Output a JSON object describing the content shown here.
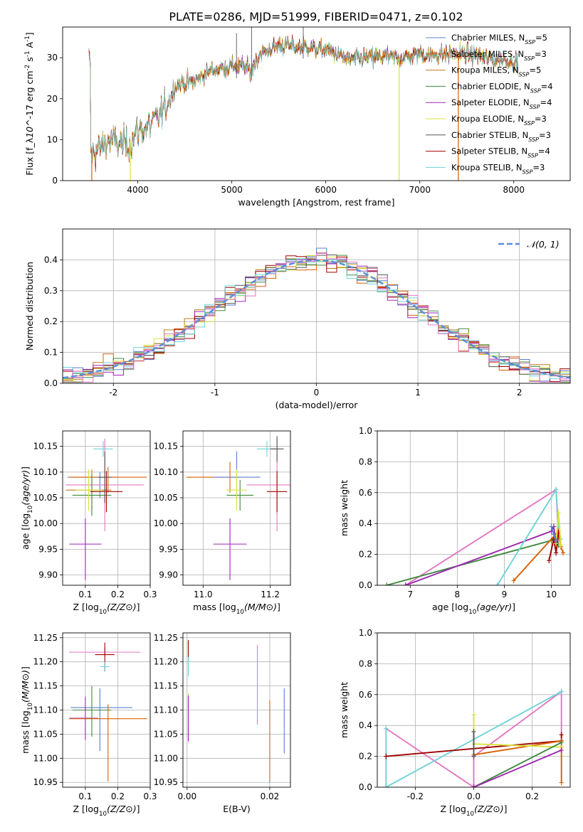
{
  "title": "PLATE=0286, MJD=51999, FIBERID=0471, z=0.102",
  "model_colors": [
    "#5b7fcf",
    "#d95f02",
    "#c07a1a",
    "#3f8a3f",
    "#9b27b0",
    "#d8e33a",
    "#555555",
    "#a00000",
    "#6fd3d8"
  ],
  "pink": "#e377c2",
  "chart_data": [
    {
      "type": "line",
      "name": "spectrum",
      "xlabel": "wavelength [Angstrom, rest frame]",
      "ylabel": "Flux [f_λ10^-17 erg cm^-2 s^-1 A^-1]",
      "xlim": [
        3200,
        8600
      ],
      "ylim": [
        0,
        37.5
      ],
      "xticks": [
        4000,
        5000,
        6000,
        7000,
        8000
      ],
      "yticks": [
        0,
        10,
        20,
        30
      ],
      "grid": false,
      "legend": "right",
      "legend_entries": [
        "Chabrier MILES, N_SSP=5",
        "Salpeter MILES, N_SSP=3",
        "Kroupa MILES, N_SSP=5",
        "Chabrier ELODIE, N_SSP=4",
        "Salpeter ELODIE, N_SSP=4",
        "Kroupa ELODIE, N_SSP=3",
        "Chabrier STELIB, N_SSP=3",
        "Salpeter STELIB, N_SSP=4",
        "Kroupa STELIB, N_SSP=3"
      ],
      "trend_points": [
        [
          3500,
          6.5
        ],
        [
          3600,
          8
        ],
        [
          3700,
          10
        ],
        [
          3800,
          9
        ],
        [
          3900,
          9
        ],
        [
          4000,
          12
        ],
        [
          4100,
          13
        ],
        [
          4200,
          15
        ],
        [
          4300,
          18
        ],
        [
          4400,
          23
        ],
        [
          4500,
          24
        ],
        [
          4600,
          24
        ],
        [
          4700,
          26
        ],
        [
          4800,
          27
        ],
        [
          4900,
          27.5
        ],
        [
          5000,
          28
        ],
        [
          5100,
          28
        ],
        [
          5200,
          27
        ],
        [
          5300,
          31
        ],
        [
          5400,
          32
        ],
        [
          5500,
          33
        ],
        [
          5600,
          33
        ],
        [
          5700,
          32.5
        ],
        [
          5800,
          33
        ],
        [
          5900,
          32
        ],
        [
          6000,
          32
        ],
        [
          6100,
          31
        ],
        [
          6200,
          30
        ],
        [
          6300,
          29.5
        ],
        [
          6400,
          30
        ],
        [
          6500,
          30
        ],
        [
          6600,
          30.5
        ],
        [
          6700,
          30
        ],
        [
          6800,
          30
        ],
        [
          6900,
          30.5
        ],
        [
          7000,
          31
        ],
        [
          7100,
          30.5
        ],
        [
          7200,
          31
        ],
        [
          7300,
          31
        ],
        [
          7400,
          31
        ],
        [
          7500,
          31
        ],
        [
          7600,
          30.5
        ],
        [
          7700,
          30
        ],
        [
          7800,
          29.5
        ],
        [
          7900,
          29.5
        ],
        [
          8000,
          29
        ]
      ],
      "dropouts": [
        {
          "x": 3510,
          "color": 1
        },
        {
          "x": 3920,
          "color": 5
        },
        {
          "x": 6780,
          "color": 5
        },
        {
          "x": 7410,
          "color": 1
        }
      ],
      "spikes": [
        {
          "x": 5050,
          "top": 36
        },
        {
          "x": 5210,
          "top": 38
        },
        {
          "x": 5760,
          "top": 38
        }
      ]
    },
    {
      "type": "bar",
      "name": "residual_histogram",
      "xlabel": "(data-model)/error",
      "ylabel": "Normed distribution",
      "xlim": [
        -2.5,
        2.5
      ],
      "ylim": [
        0,
        0.5
      ],
      "xticks": [
        -2,
        -1,
        0,
        1,
        2
      ],
      "yticks": [
        0.0,
        0.1,
        0.2,
        0.3,
        0.4
      ],
      "grid": true,
      "legend": "top-right",
      "legend_entries": [
        "𝒩(0, 1)"
      ],
      "bin_width": 0.1,
      "reference_curve": "standard normal"
    },
    {
      "type": "scatter",
      "name": "age_vs_Z",
      "xlabel": "Z [log10(Z/Z⊙)]",
      "ylabel": "age  [log10(age/yr)]",
      "xlim": [
        0.03,
        0.3
      ],
      "ylim": [
        9.88,
        10.18
      ],
      "xticks": [
        0.1,
        0.2,
        0.3
      ],
      "yticks": [
        9.9,
        9.95,
        10.0,
        10.05,
        10.1,
        10.15
      ],
      "grid": true,
      "points": [
        {
          "color": 0,
          "x": 0.145,
          "y": 10.09,
          "xerr": [
            0.1,
            0.05
          ],
          "yerr": [
            0.04,
            0.01
          ]
        },
        {
          "color": 1,
          "x": 0.17,
          "y": 10.09,
          "xerr": [
            0.12,
            0.12
          ],
          "yerr": [
            0.03,
            0.02
          ]
        },
        {
          "color": "pink",
          "x": 0.16,
          "y": 10.075,
          "xerr": [
            0.12,
            0.12
          ],
          "yerr": [
            0.09,
            0.09
          ]
        },
        {
          "color": 2,
          "x": 0.12,
          "y": 10.065,
          "xerr": [
            0.08,
            0.06
          ],
          "yerr": [
            0.04,
            0.04
          ]
        },
        {
          "color": 3,
          "x": 0.12,
          "y": 10.055,
          "xerr": [
            0.06,
            0.06
          ],
          "yerr": [
            0.04,
            0.04
          ]
        },
        {
          "color": 5,
          "x": 0.11,
          "y": 10.065,
          "xerr": [
            0.04,
            0.04
          ],
          "yerr": [
            0.04,
            0.04
          ]
        },
        {
          "color": 7,
          "x": 0.165,
          "y": 10.062,
          "xerr": [
            0.05,
            0.05
          ],
          "yerr": [
            0.04,
            0.04
          ]
        },
        {
          "color": 6,
          "x": 0.16,
          "y": 10.09,
          "xerr": [
            0.02,
            0.02
          ],
          "yerr": [
            0.05,
            0.05
          ]
        },
        {
          "color": 8,
          "x": 0.155,
          "y": 10.145,
          "xerr": [
            0.03,
            0.03
          ],
          "yerr": [
            0.015,
            0.015
          ]
        },
        {
          "color": 4,
          "x": 0.1,
          "y": 9.96,
          "xerr": [
            0.05,
            0.05
          ],
          "yerr": [
            0.07,
            0.05
          ]
        }
      ]
    },
    {
      "type": "scatter",
      "name": "age_vs_mass",
      "xlabel": "mass [log10(M/M⊙)]",
      "ylabel": "",
      "xlim": [
        10.94,
        11.26
      ],
      "ylim": [
        9.88,
        10.18
      ],
      "xticks": [
        11.0,
        11.2
      ],
      "yticks": [
        9.9,
        9.95,
        10.0,
        10.05,
        10.1,
        10.15
      ],
      "grid": true,
      "points": [
        {
          "color": 1,
          "x": 11.08,
          "y": 10.09,
          "xerr": [
            0.13,
            0.03
          ],
          "yerr": [
            0.03,
            0.03
          ]
        },
        {
          "color": 0,
          "x": 11.1,
          "y": 10.09,
          "xerr": [
            0.07,
            0.07
          ],
          "yerr": [
            0.04,
            0.05
          ]
        },
        {
          "color": "pink",
          "x": 11.22,
          "y": 10.075,
          "xerr": [
            0.09,
            0.06
          ],
          "yerr": [
            0.09,
            0.09
          ]
        },
        {
          "color": 3,
          "x": 11.11,
          "y": 10.055,
          "xerr": [
            0.04,
            0.04
          ],
          "yerr": [
            0.03,
            0.03
          ]
        },
        {
          "color": 5,
          "x": 11.1,
          "y": 10.065,
          "xerr": [
            0.03,
            0.03
          ],
          "yerr": [
            0.04,
            0.04
          ]
        },
        {
          "color": 7,
          "x": 11.22,
          "y": 10.062,
          "xerr": [
            0.03,
            0.03
          ],
          "yerr": [
            0.04,
            0.04
          ]
        },
        {
          "color": 8,
          "x": 11.19,
          "y": 10.145,
          "xerr": [
            0.03,
            0.03
          ],
          "yerr": [
            0.015,
            0.015
          ]
        },
        {
          "color": 6,
          "x": 11.22,
          "y": 10.145,
          "xerr": [
            0.02,
            0.02
          ],
          "yerr": [
            0.025,
            0.025
          ]
        },
        {
          "color": 4,
          "x": 11.08,
          "y": 9.96,
          "xerr": [
            0.05,
            0.05
          ],
          "yerr": [
            0.07,
            0.05
          ]
        }
      ]
    },
    {
      "type": "line",
      "name": "mass_weight_vs_age",
      "xlabel": "age  [log10(age/yr)]",
      "ylabel": "mass weight",
      "xlim": [
        6.3,
        10.4
      ],
      "ylim": [
        0,
        1
      ],
      "xticks": [
        7,
        8,
        9,
        10
      ],
      "yticks": [
        0.0,
        0.2,
        0.4,
        0.6,
        0.8,
        1.0
      ],
      "grid": true,
      "series": [
        {
          "color": "pink",
          "x": [
            6.9,
            10.1,
            10.15
          ],
          "y": [
            0,
            0.62,
            0.3
          ]
        },
        {
          "color": 3,
          "x": [
            6.5,
            10.0,
            10.1,
            10.15
          ],
          "y": [
            0,
            0.29,
            0.3,
            0.26
          ]
        },
        {
          "color": 4,
          "x": [
            6.9,
            10.0,
            10.05,
            10.1
          ],
          "y": [
            0,
            0.35,
            0.38,
            0.27
          ]
        },
        {
          "color": 8,
          "x": [
            8.85,
            10.1,
            10.15,
            10.2
          ],
          "y": [
            0,
            0.62,
            0.38,
            0.3
          ]
        },
        {
          "color": 1,
          "x": [
            9.2,
            10.15,
            10.2,
            10.25
          ],
          "y": [
            0.03,
            0.35,
            0.25,
            0.21
          ]
        },
        {
          "color": 7,
          "x": [
            9.95,
            10.05,
            10.1,
            10.15
          ],
          "y": [
            0.16,
            0.3,
            0.21,
            0.34
          ]
        },
        {
          "color": 5,
          "x": [
            10.1,
            10.15,
            10.2
          ],
          "y": [
            0.27,
            0.47,
            0.26
          ]
        },
        {
          "color": 0,
          "x": [
            10.0,
            10.05,
            10.1
          ],
          "y": [
            0.38,
            0.33,
            0.29
          ]
        }
      ]
    },
    {
      "type": "scatter",
      "name": "mass_vs_Z",
      "xlabel": "Z [log10(Z/Z⊙)]",
      "ylabel": "mass [log10(M/M⊙)]",
      "xlim": [
        0.03,
        0.3
      ],
      "ylim": [
        10.94,
        11.26
      ],
      "xticks": [
        0.1,
        0.2,
        0.3
      ],
      "yticks": [
        10.95,
        11.0,
        11.05,
        11.1,
        11.15,
        11.2,
        11.25
      ],
      "grid": true,
      "points": [
        {
          "color": "pink",
          "x": 0.16,
          "y": 11.22,
          "xerr": [
            0.11,
            0.11
          ],
          "yerr": [
            0.01,
            0.01
          ]
        },
        {
          "color": 7,
          "x": 0.16,
          "y": 11.215,
          "xerr": [
            0.03,
            0.03
          ],
          "yerr": [
            0.035,
            0.025
          ]
        },
        {
          "color": 8,
          "x": 0.16,
          "y": 11.19,
          "xerr": [
            0.015,
            0.015
          ],
          "yerr": [
            0.01,
            0.01
          ]
        },
        {
          "color": 0,
          "x": 0.145,
          "y": 11.105,
          "xerr": [
            0.09,
            0.1
          ],
          "yerr": [
            0.09,
            0.04
          ]
        },
        {
          "color": 5,
          "x": 0.12,
          "y": 11.1,
          "xerr": [
            0.06,
            0.05
          ],
          "yerr": [
            0.04,
            0.04
          ]
        },
        {
          "color": 3,
          "x": 0.12,
          "y": 11.1,
          "xerr": [
            0.06,
            0.06
          ],
          "yerr": [
            0.055,
            0.05
          ]
        },
        {
          "color": 4,
          "x": 0.1,
          "y": 11.083,
          "xerr": [
            0.05,
            0.04
          ],
          "yerr": [
            0.045,
            0.045
          ]
        },
        {
          "color": 1,
          "x": 0.17,
          "y": 11.082,
          "xerr": [
            0.12,
            0.12
          ],
          "yerr": [
            0.13,
            0.03
          ]
        }
      ]
    },
    {
      "type": "scatter",
      "name": "mass_vs_ebv",
      "xlabel": "E(B-V)",
      "ylabel": "",
      "xlim": [
        -0.001,
        0.025
      ],
      "ylim": [
        10.94,
        11.26
      ],
      "xticks": [
        0.0,
        0.02
      ],
      "yticks": [
        10.95,
        11.0,
        11.05,
        11.1,
        11.15,
        11.2,
        11.25
      ],
      "grid": true,
      "bars": [
        {
          "color": 7,
          "x": 0.0003,
          "y0": 11.2,
          "y1": 11.245
        },
        {
          "color": 8,
          "x": 0.0003,
          "y0": 11.17,
          "y1": 11.21
        },
        {
          "color": 5,
          "x": 0.0003,
          "y0": 11.06,
          "y1": 11.135
        },
        {
          "color": 4,
          "x": 0.0003,
          "y0": 11.035,
          "y1": 11.13
        },
        {
          "color": "pink",
          "x": 0.017,
          "y0": 11.07,
          "y1": 11.235
        },
        {
          "color": 1,
          "x": 0.02,
          "y0": 10.95,
          "y1": 11.12
        },
        {
          "color": 0,
          "x": 0.0235,
          "y0": 11.01,
          "y1": 11.145
        }
      ]
    },
    {
      "type": "line",
      "name": "mass_weight_vs_Z",
      "xlabel": "Z [log10(Z/Z⊙)]",
      "ylabel": "mass weight",
      "xlim": [
        -0.33,
        0.33
      ],
      "ylim": [
        0,
        1
      ],
      "xticks": [
        -0.2,
        0.0,
        0.2
      ],
      "yticks": [
        0.0,
        0.2,
        0.4,
        0.6,
        0.8,
        1.0
      ],
      "grid": true,
      "series": [
        {
          "color": "pink",
          "x": [
            -0.3,
            0.0,
            0.0,
            0.3,
            0.3
          ],
          "y": [
            0.38,
            0.0,
            0.2,
            0.62,
            0.3
          ]
        },
        {
          "color": 8,
          "x": [
            -0.3,
            -0.3,
            0.3
          ],
          "y": [
            0.38,
            0.0,
            0.62
          ]
        },
        {
          "color": 7,
          "x": [
            -0.3,
            0.3,
            0.3
          ],
          "y": [
            0.2,
            0.3,
            0.34
          ]
        },
        {
          "color": 1,
          "x": [
            0.0,
            0.3,
            0.3
          ],
          "y": [
            0.21,
            0.3,
            0.03
          ]
        },
        {
          "color": 5,
          "x": [
            0.0,
            0.0,
            0.3
          ],
          "y": [
            0.47,
            0.28,
            0.26
          ]
        },
        {
          "color": 3,
          "x": [
            0.0,
            0.3
          ],
          "y": [
            0.0,
            0.29
          ]
        },
        {
          "color": 4,
          "x": [
            0.0,
            0.3
          ],
          "y": [
            0.0,
            0.24
          ]
        },
        {
          "color": 6,
          "x": [
            0.0,
            0.0
          ],
          "y": [
            0.36,
            0.2
          ]
        }
      ]
    }
  ]
}
